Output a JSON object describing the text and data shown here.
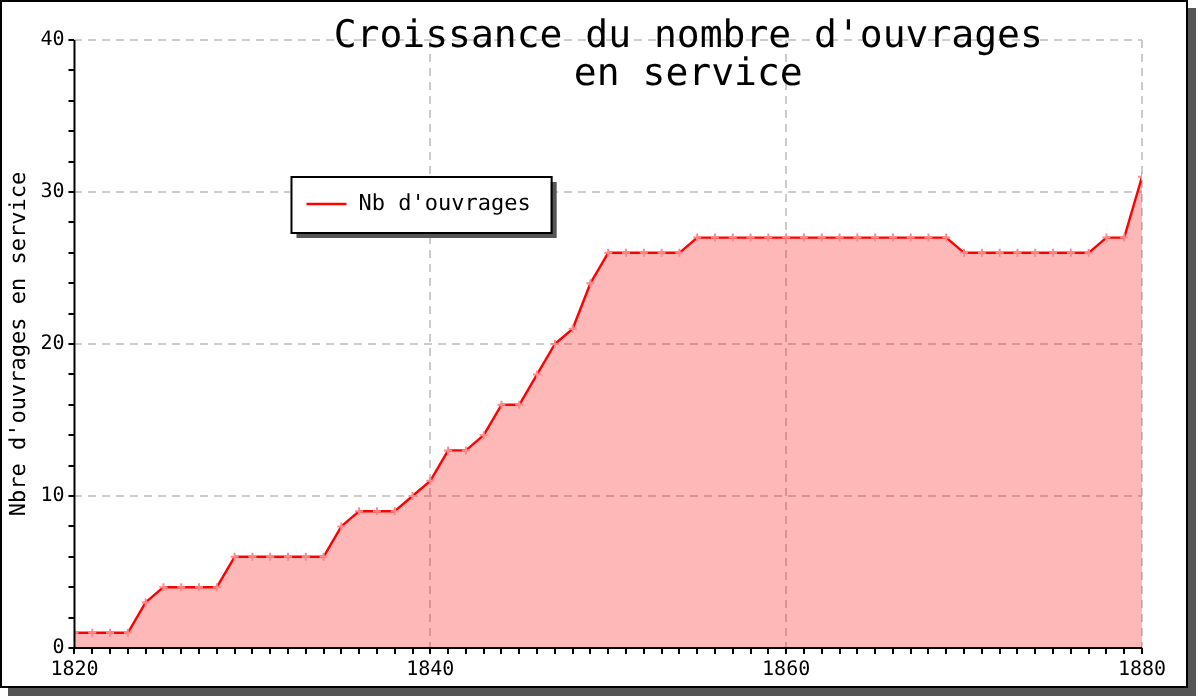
{
  "chart_data": {
    "type": "area",
    "title": "Croissance du nombre d'ouvrages\nen service",
    "ylabel": "Nbre d'ouvrages en service",
    "x": [
      1820,
      1821,
      1822,
      1823,
      1824,
      1825,
      1826,
      1827,
      1828,
      1829,
      1830,
      1831,
      1832,
      1833,
      1834,
      1835,
      1836,
      1837,
      1838,
      1839,
      1840,
      1841,
      1842,
      1843,
      1844,
      1845,
      1846,
      1847,
      1848,
      1849,
      1850,
      1851,
      1852,
      1853,
      1854,
      1855,
      1856,
      1857,
      1858,
      1859,
      1860,
      1861,
      1862,
      1863,
      1864,
      1865,
      1866,
      1867,
      1868,
      1869,
      1870,
      1871,
      1872,
      1873,
      1874,
      1875,
      1876,
      1877,
      1878,
      1879,
      1880
    ],
    "series": [
      {
        "name": "Nb d'ouvrages",
        "color": "#ff0000",
        "values": [
          1,
          1,
          1,
          1,
          3,
          4,
          4,
          4,
          4,
          6,
          6,
          6,
          6,
          6,
          6,
          8,
          9,
          9,
          9,
          10,
          11,
          13,
          13,
          14,
          16,
          16,
          18,
          20,
          21,
          24,
          26,
          26,
          26,
          26,
          26,
          27,
          27,
          27,
          27,
          27,
          27,
          27,
          27,
          27,
          27,
          27,
          27,
          27,
          27,
          27,
          26,
          26,
          26,
          26,
          26,
          26,
          26,
          26,
          27,
          27,
          31
        ]
      }
    ],
    "xlim": [
      1820,
      1880
    ],
    "xticks": [
      1820,
      {
        "value": 1821,
        "label": null
      },
      {
        "value": 1822,
        "label": null
      },
      {
        "value": 1823,
        "label": null
      },
      {
        "value": 1824,
        "label": null
      },
      {
        "value": 1825,
        "label": null
      },
      {
        "value": 1826,
        "label": null
      },
      {
        "value": 1827,
        "label": null
      },
      {
        "value": 1828,
        "label": null
      },
      {
        "value": 1829,
        "label": null
      },
      {
        "value": 1830,
        "label": null
      },
      {
        "value": 1831,
        "label": null
      },
      {
        "value": 1832,
        "label": null
      },
      {
        "value": 1833,
        "label": null
      },
      {
        "value": 1834,
        "label": null
      },
      {
        "value": 1835,
        "label": null
      },
      {
        "value": 1836,
        "label": null
      },
      {
        "value": 1837,
        "label": null
      },
      {
        "value": 1838,
        "label": null
      },
      {
        "value": 1839,
        "label": null
      },
      1840,
      {
        "value": 1841,
        "label": null
      },
      {
        "value": 1842,
        "label": null
      },
      {
        "value": 1843,
        "label": null
      },
      {
        "value": 1844,
        "label": null
      },
      {
        "value": 1845,
        "label": null
      },
      {
        "value": 1846,
        "label": null
      },
      {
        "value": 1847,
        "label": null
      },
      {
        "value": 1848,
        "label": null
      },
      {
        "value": 1849,
        "label": null
      },
      {
        "value": 1850,
        "label": null
      },
      {
        "value": 1851,
        "label": null
      },
      {
        "value": 1852,
        "label": null
      },
      {
        "value": 1853,
        "label": null
      },
      {
        "value": 1854,
        "label": null
      },
      {
        "value": 1855,
        "label": null
      },
      {
        "value": 1856,
        "label": null
      },
      {
        "value": 1857,
        "label": null
      },
      {
        "value": 1858,
        "label": null
      },
      {
        "value": 1859,
        "label": null
      },
      1860,
      {
        "value": 1861,
        "label": null
      },
      {
        "value": 1862,
        "label": null
      },
      {
        "value": 1863,
        "label": null
      },
      {
        "value": 1864,
        "label": null
      },
      {
        "value": 1865,
        "label": null
      },
      {
        "value": 1866,
        "label": null
      },
      {
        "value": 1867,
        "label": null
      },
      {
        "value": 1868,
        "label": null
      },
      {
        "value": 1869,
        "label": null
      },
      {
        "value": 1870,
        "label": null
      },
      {
        "value": 1871,
        "label": null
      },
      {
        "value": 1872,
        "label": null
      },
      {
        "value": 1873,
        "label": null
      },
      {
        "value": 1874,
        "label": null
      },
      {
        "value": 1875,
        "label": null
      },
      {
        "value": 1876,
        "label": null
      },
      {
        "value": 1877,
        "label": null
      },
      {
        "value": 1878,
        "label": null
      },
      {
        "value": 1879,
        "label": null
      },
      1880
    ],
    "ylim": [
      0,
      40
    ],
    "yticks": [
      0,
      {
        "value": 2,
        "label": null
      },
      {
        "value": 4,
        "label": null
      },
      {
        "value": 6,
        "label": null
      },
      {
        "value": 8,
        "label": null
      },
      10,
      {
        "value": 12,
        "label": null
      },
      {
        "value": 14,
        "label": null
      },
      {
        "value": 16,
        "label": null
      },
      {
        "value": 18,
        "label": null
      },
      20,
      {
        "value": 22,
        "label": null
      },
      {
        "value": 24,
        "label": null
      },
      {
        "value": 26,
        "label": null
      },
      {
        "value": 28,
        "label": null
      },
      30,
      {
        "value": 32,
        "label": null
      },
      {
        "value": 34,
        "label": null
      },
      {
        "value": 36,
        "label": null
      },
      {
        "value": 38,
        "label": null
      },
      40
    ],
    "grid": true,
    "legend": "top left",
    "marker": "cross",
    "line_style": "solid"
  }
}
